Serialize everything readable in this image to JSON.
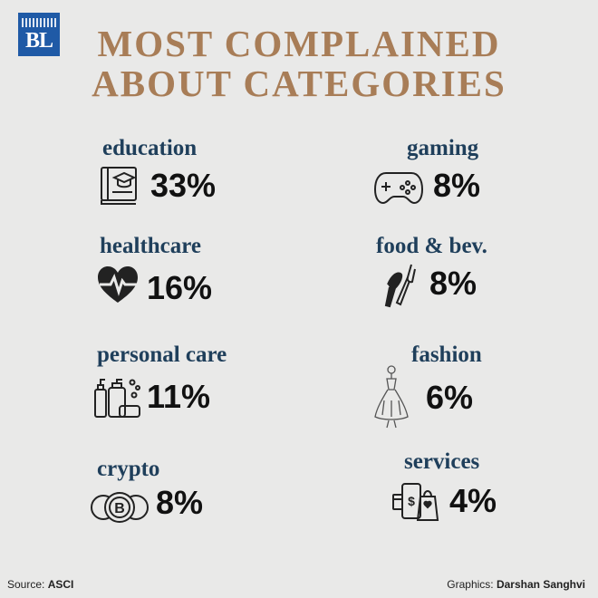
{
  "logo": {
    "text": "BL"
  },
  "title": {
    "line1": "MOST COMPLAINED",
    "line2": "ABOUT CATEGORIES"
  },
  "chart_data": {
    "type": "table",
    "title": "MOST COMPLAINED ABOUT CATEGORIES",
    "categories": [
      "education",
      "healthcare",
      "personal care",
      "crypto",
      "gaming",
      "food & bev.",
      "fashion",
      "services"
    ],
    "values": [
      33,
      16,
      11,
      8,
      8,
      8,
      6,
      4
    ],
    "value_labels": [
      "33%",
      "16%",
      "11%",
      "8%",
      "8%",
      "8%",
      "6%",
      "4%"
    ],
    "icons": [
      "book-cap-icon",
      "heart-pulse-icon",
      "toiletries-icon",
      "coins-icon",
      "gamepad-icon",
      "fork-knife-icon",
      "dress-icon",
      "phone-bag-icon"
    ]
  },
  "colors": {
    "title": "#a87d57",
    "category": "#1f3f5b",
    "value": "#111111",
    "logo_bg": "#1f5aa6",
    "background": "#e9e9e8"
  },
  "footer": {
    "source_label": "Source:",
    "source": "ASCI",
    "graphics_label": "Graphics:",
    "graphics": "Darshan Sanghvi"
  }
}
